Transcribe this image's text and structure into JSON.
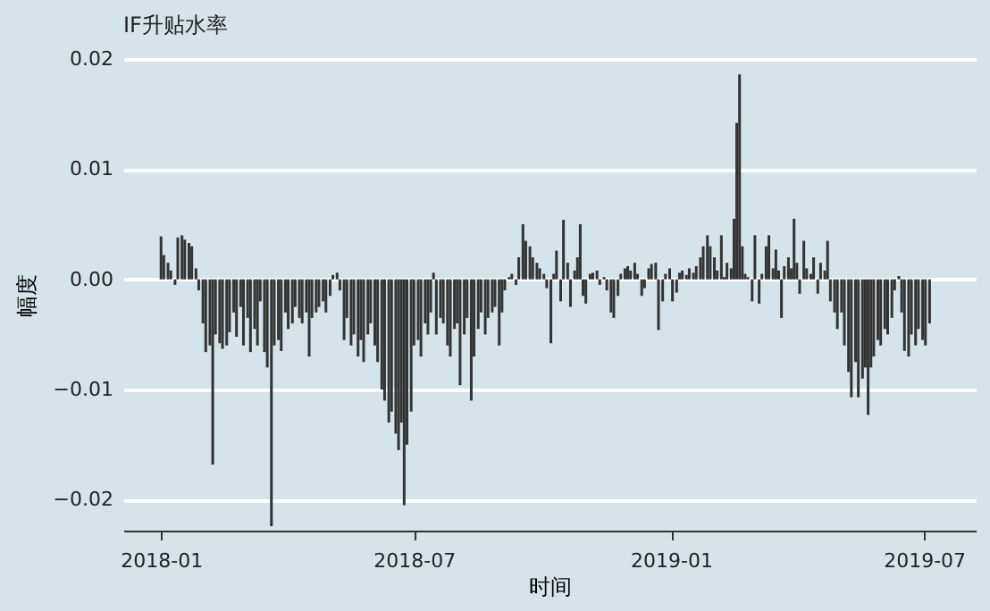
{
  "chart_data": {
    "type": "bar",
    "title": "IF升贴水率",
    "xlabel": "时间",
    "ylabel": "幅度",
    "x": [
      "2018-01-01",
      "2018-01-03",
      "2018-01-06",
      "2018-01-08",
      "2018-01-11",
      "2018-01-13",
      "2018-01-16",
      "2018-01-18",
      "2018-01-21",
      "2018-01-23",
      "2018-01-26",
      "2018-01-28",
      "2018-01-31",
      "2018-02-02",
      "2018-02-05",
      "2018-02-07",
      "2018-02-09",
      "2018-02-12",
      "2018-02-14",
      "2018-02-17",
      "2018-02-19",
      "2018-02-22",
      "2018-02-24",
      "2018-02-27",
      "2018-03-01",
      "2018-03-04",
      "2018-03-06",
      "2018-03-09",
      "2018-03-11",
      "2018-03-13",
      "2018-03-16",
      "2018-03-18",
      "2018-03-21",
      "2018-03-23",
      "2018-03-26",
      "2018-03-28",
      "2018-03-31",
      "2018-04-02",
      "2018-04-05",
      "2018-04-07",
      "2018-04-10",
      "2018-04-12",
      "2018-04-15",
      "2018-04-17",
      "2018-04-19",
      "2018-04-22",
      "2018-04-24",
      "2018-04-27",
      "2018-04-29",
      "2018-05-02",
      "2018-05-04",
      "2018-05-07",
      "2018-05-09",
      "2018-05-12",
      "2018-05-14",
      "2018-05-17",
      "2018-05-19",
      "2018-05-22",
      "2018-05-24",
      "2018-05-26",
      "2018-05-29",
      "2018-05-31",
      "2018-06-03",
      "2018-06-05",
      "2018-06-08",
      "2018-06-10",
      "2018-06-13",
      "2018-06-15",
      "2018-06-18",
      "2018-06-20",
      "2018-06-22",
      "2018-06-24",
      "2018-06-26",
      "2018-06-29",
      "2018-07-01",
      "2018-07-04",
      "2018-07-06",
      "2018-07-09",
      "2018-07-11",
      "2018-07-13",
      "2018-07-15",
      "2018-07-17",
      "2018-07-20",
      "2018-07-22",
      "2018-07-25",
      "2018-07-27",
      "2018-07-30",
      "2018-08-01",
      "2018-08-03",
      "2018-08-06",
      "2018-08-08",
      "2018-08-11",
      "2018-08-13",
      "2018-08-16",
      "2018-08-18",
      "2018-08-21",
      "2018-08-23",
      "2018-08-26",
      "2018-08-28",
      "2018-08-31",
      "2018-09-02",
      "2018-09-04",
      "2018-09-07",
      "2018-09-09",
      "2018-09-12",
      "2018-09-14",
      "2018-09-17",
      "2018-09-19",
      "2018-09-22",
      "2018-09-24",
      "2018-09-27",
      "2018-09-29",
      "2018-10-02",
      "2018-10-04",
      "2018-10-07",
      "2018-10-09",
      "2018-10-11",
      "2018-10-14",
      "2018-10-16",
      "2018-10-19",
      "2018-10-21",
      "2018-10-24",
      "2018-10-26",
      "2018-10-28",
      "2018-10-30",
      "2018-11-01",
      "2018-11-04",
      "2018-11-06",
      "2018-11-09",
      "2018-11-11",
      "2018-11-14",
      "2018-11-16",
      "2018-11-19",
      "2018-11-21",
      "2018-11-24",
      "2018-11-26",
      "2018-11-29",
      "2018-12-01",
      "2018-12-03",
      "2018-12-06",
      "2018-12-08",
      "2018-12-11",
      "2018-12-13",
      "2018-12-16",
      "2018-12-18",
      "2018-12-21",
      "2018-12-23",
      "2018-12-26",
      "2018-12-28",
      "2018-12-31",
      "2019-01-02",
      "2019-01-05",
      "2019-01-07",
      "2019-01-09",
      "2019-01-12",
      "2019-01-14",
      "2019-01-17",
      "2019-01-19",
      "2019-01-22",
      "2019-01-24",
      "2019-01-27",
      "2019-01-29",
      "2019-02-01",
      "2019-02-03",
      "2019-02-06",
      "2019-02-08",
      "2019-02-10",
      "2019-02-13",
      "2019-02-15",
      "2019-02-17",
      "2019-02-19",
      "2019-02-21",
      "2019-02-23",
      "2019-02-25",
      "2019-02-28",
      "2019-03-02",
      "2019-03-05",
      "2019-03-07",
      "2019-03-10",
      "2019-03-12",
      "2019-03-15",
      "2019-03-17",
      "2019-03-19",
      "2019-03-21",
      "2019-03-23",
      "2019-03-26",
      "2019-03-28",
      "2019-03-30",
      "2019-04-01",
      "2019-04-03",
      "2019-04-06",
      "2019-04-08",
      "2019-04-11",
      "2019-04-13",
      "2019-04-16",
      "2019-04-18",
      "2019-04-21",
      "2019-04-23",
      "2019-04-25",
      "2019-04-28",
      "2019-04-30",
      "2019-05-03",
      "2019-05-05",
      "2019-05-08",
      "2019-05-10",
      "2019-05-13",
      "2019-05-15",
      "2019-05-18",
      "2019-05-20",
      "2019-05-22",
      "2019-05-24",
      "2019-05-26",
      "2019-05-29",
      "2019-05-31",
      "2019-06-03",
      "2019-06-05",
      "2019-06-08",
      "2019-06-10",
      "2019-06-13",
      "2019-06-15",
      "2019-06-17",
      "2019-06-20",
      "2019-06-22",
      "2019-06-25",
      "2019-06-27",
      "2019-06-30",
      "2019-07-02",
      "2019-07-05"
    ],
    "series": [
      {
        "color": "#333333",
        "values": [
          0.0039,
          0.0022,
          0.0015,
          0.0008,
          -0.0005,
          0.0038,
          0.004,
          0.0036,
          0.0033,
          0.003,
          0.001,
          -0.001,
          -0.004,
          -0.0066,
          -0.006,
          -0.0168,
          -0.005,
          -0.0058,
          -0.0063,
          -0.006,
          -0.0048,
          -0.003,
          -0.0052,
          -0.0025,
          -0.006,
          -0.0035,
          -0.0066,
          -0.0045,
          -0.006,
          -0.002,
          -0.0066,
          -0.008,
          -0.0224,
          -0.006,
          -0.0055,
          -0.0065,
          -0.003,
          -0.0045,
          -0.004,
          -0.0025,
          -0.0035,
          -0.004,
          -0.003,
          -0.007,
          -0.0035,
          -0.003,
          -0.0025,
          -0.002,
          -0.003,
          -0.0015,
          0.0004,
          0.0006,
          -0.001,
          -0.0055,
          -0.0035,
          -0.006,
          -0.005,
          -0.007,
          -0.0055,
          -0.0075,
          -0.005,
          -0.004,
          -0.006,
          -0.0075,
          -0.01,
          -0.011,
          -0.013,
          -0.012,
          -0.014,
          -0.0155,
          -0.013,
          -0.0205,
          -0.015,
          -0.012,
          -0.006,
          -0.0055,
          -0.007,
          -0.004,
          -0.005,
          -0.003,
          0.0006,
          -0.005,
          -0.0035,
          -0.004,
          -0.006,
          -0.007,
          -0.0045,
          -0.004,
          -0.0096,
          -0.005,
          -0.0035,
          -0.011,
          -0.007,
          -0.0045,
          -0.003,
          -0.005,
          -0.0035,
          -0.003,
          -0.0025,
          -0.006,
          -0.003,
          -0.001,
          0.0002,
          0.0005,
          -0.0005,
          0.002,
          0.005,
          0.0035,
          0.003,
          0.002,
          0.0015,
          0.001,
          0.0005,
          -0.0008,
          -0.0058,
          0.0005,
          0.0026,
          -0.002,
          0.0054,
          0.0015,
          -0.0025,
          0.0008,
          0.002,
          0.005,
          -0.0015,
          -0.0022,
          0.0005,
          0.0006,
          0.0008,
          -0.0005,
          0.0002,
          -0.001,
          -0.003,
          -0.0035,
          -0.0015,
          0.0005,
          0.001,
          0.0012,
          0.0008,
          0.0015,
          0.0005,
          -0.0015,
          -0.0008,
          0.001,
          0.0014,
          0.0015,
          -0.0046,
          -0.002,
          0.0005,
          0.001,
          -0.002,
          -0.0012,
          0.0006,
          0.0008,
          0.0004,
          0.001,
          0.0006,
          0.0012,
          0.002,
          0.003,
          0.004,
          0.003,
          0.002,
          0.0008,
          0.004,
          0.0002,
          0.0015,
          0.001,
          0.0055,
          0.0142,
          0.0186,
          0.003,
          0.0005,
          0.0002,
          -0.002,
          0.004,
          -0.0022,
          0.0005,
          0.003,
          0.004,
          0.001,
          0.0027,
          0.0008,
          -0.0035,
          0.0012,
          0.002,
          0.001,
          0.0055,
          0.0015,
          -0.0013,
          0.0035,
          0.001,
          0.0005,
          0.002,
          -0.0013,
          0.0015,
          0.0008,
          0.0035,
          -0.002,
          -0.003,
          -0.0045,
          -0.003,
          -0.006,
          -0.0084,
          -0.0107,
          -0.0075,
          -0.0107,
          -0.009,
          -0.008,
          -0.0123,
          -0.008,
          -0.007,
          -0.0055,
          -0.006,
          -0.0045,
          -0.005,
          -0.0035,
          -0.001,
          0.0003,
          -0.003,
          -0.0065,
          -0.007,
          -0.005,
          -0.006,
          -0.0045,
          -0.0055,
          -0.006,
          -0.004
        ]
      }
    ],
    "xlim": [
      "2017-12-05",
      "2019-08-07"
    ],
    "xticks": [
      "2018-01",
      "2018-07",
      "2019-01",
      "2019-07"
    ],
    "ylim": [
      -0.0228,
      0.02
    ],
    "yticks": [
      -0.02,
      -0.01,
      {
        "value": 0,
        "label": "0.00"
      },
      0.01,
      0.02
    ],
    "grid": "y",
    "legend": false
  }
}
